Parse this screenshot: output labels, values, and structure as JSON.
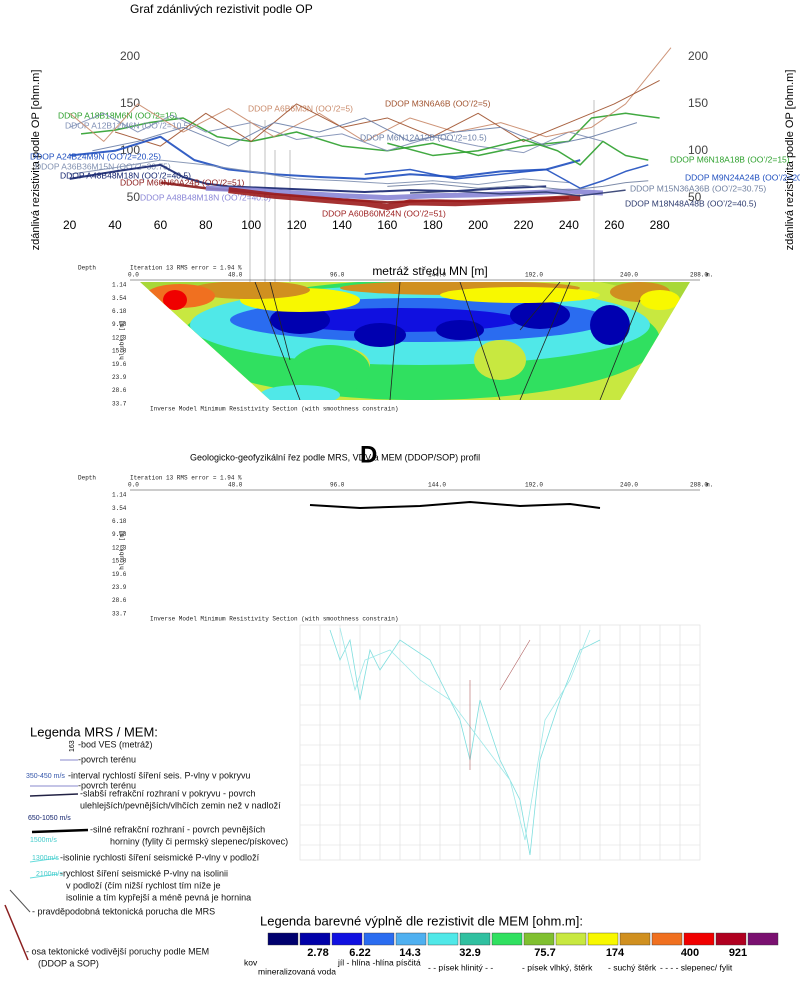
{
  "chart_data": {
    "type": "line",
    "title": "Graf zdánlivých rezistivit podle OP",
    "x_label": "metráž středu MN [m]",
    "y_label": "zdánlivá rezistivita podle OP [ohm.m]",
    "xlim": [
      10,
      300
    ],
    "ylim": [
      40,
      215
    ],
    "xticks": [
      20,
      40,
      60,
      80,
      100,
      120,
      140,
      160,
      180,
      200,
      220,
      240,
      260,
      280
    ],
    "yticks": [
      50,
      100,
      150,
      200
    ],
    "series": [
      {
        "name": "DDOP A18B18M6N (OO’/2=15)",
        "color": "#2ca02c",
        "x": [
          25,
          40,
          55,
          70,
          85,
          100,
          120,
          140,
          160,
          180,
          200,
          220,
          240,
          250,
          265,
          280
        ],
        "values": [
          118,
          122,
          130,
          135,
          115,
          110,
          120,
          105,
          100,
          108,
          95,
          105,
          110,
          135,
          140,
          135
        ]
      },
      {
        "name": "DDOP A12B12M6N (OO’/2=10.5)",
        "color": "#7f8fb5",
        "x": [
          20,
          35,
          50,
          65,
          80,
          100,
          120,
          140,
          160,
          180,
          200,
          220,
          240,
          255
        ],
        "values": [
          125,
          140,
          120,
          138,
          120,
          130,
          112,
          118,
          100,
          115,
          105,
          98,
          120,
          110
        ]
      },
      {
        "name": "DDOP A6B6M3N (OO’/2=5)",
        "color": "#c98a6a",
        "x": [
          20,
          35,
          50,
          70,
          90,
          110,
          130,
          150,
          170,
          190,
          210,
          230,
          250,
          265,
          275,
          285
        ],
        "values": [
          140,
          110,
          150,
          120,
          145,
          115,
          140,
          110,
          135,
          120,
          130,
          115,
          125,
          150,
          180,
          210
        ]
      },
      {
        "name": "DDOP M3N6A6B (OO’/2=5)",
        "color": "#a0522d",
        "x": [
          40,
          60,
          80,
          100,
          120,
          140,
          160,
          180,
          200,
          220,
          240,
          260,
          280
        ],
        "values": [
          120,
          105,
          140,
          110,
          150,
          125,
          135,
          115,
          140,
          110,
          130,
          150,
          175
        ]
      },
      {
        "name": "DDOP M6N12A12B (OO’/2=10.5)",
        "color": "#6b7fa8",
        "x": [
          30,
          50,
          70,
          90,
          110,
          130,
          150,
          170,
          190,
          210,
          230,
          250,
          270
        ],
        "values": [
          100,
          110,
          125,
          105,
          130,
          120,
          135,
          110,
          120,
          125,
          105,
          115,
          130
        ]
      },
      {
        "name": "DDOP A24B24M9N (OO’/2=20.25)",
        "color": "#1f4fbf",
        "x": [
          20,
          40,
          60,
          75,
          90,
          110,
          130,
          150,
          170,
          190,
          210,
          230,
          245
        ],
        "values": [
          95,
          100,
          115,
          90,
          80,
          75,
          72,
          70,
          75,
          72,
          78,
          80,
          90
        ]
      },
      {
        "name": "DDOP A36B36M15N (OO’/2=30.75)",
        "color": "#8090b0",
        "x": [
          20,
          40,
          60,
          80,
          100,
          120,
          140,
          160,
          180,
          200,
          220,
          240
        ],
        "values": [
          75,
          82,
          90,
          85,
          78,
          70,
          68,
          65,
          68,
          64,
          70,
          66
        ]
      },
      {
        "name": "DDOP A48B48M18N (OO’/2=40.5)",
        "color": "#14246e",
        "x": [
          20,
          40,
          60,
          70,
          80,
          90,
          110,
          130,
          150,
          170,
          190,
          210,
          230
        ],
        "values": [
          70,
          78,
          85,
          72,
          65,
          62,
          60,
          58,
          56,
          58,
          57,
          60,
          62
        ]
      },
      {
        "name": "DDOP M60N60A24B (OO’/2=51)",
        "color": "#8b1a1a",
        "x": [
          60,
          80,
          100,
          120,
          140,
          160,
          180,
          200,
          220,
          240
        ],
        "values": [
          66,
          60,
          56,
          52,
          48,
          45,
          47,
          46,
          48,
          50
        ]
      },
      {
        "name": "DDOP A48B48M18N (OO’/2=40.5)",
        "color": "#8a86d6",
        "x": [
          80,
          100,
          120,
          140,
          160,
          180,
          200,
          220,
          240,
          255
        ],
        "values": [
          60,
          58,
          55,
          52,
          50,
          52,
          53,
          55,
          57,
          55
        ]
      },
      {
        "name": "DDOP A60B60M24N (OO’/2=51)",
        "color": "#9b1c1c",
        "x": [
          90,
          110,
          130,
          150,
          160,
          170,
          190,
          210,
          230,
          245
        ],
        "values": [
          58,
          52,
          48,
          44,
          40,
          45,
          44,
          46,
          48,
          50
        ]
      },
      {
        "name": "DDOP M6N18A18B (OO’/2=15)",
        "color": "#2ca02c",
        "x": [
          160,
          180,
          200,
          220,
          235,
          245,
          255,
          265,
          275
        ],
        "values": [
          108,
          95,
          100,
          112,
          100,
          85,
          110,
          95,
          90
        ]
      },
      {
        "name": "DDOP M9N24A24B (OO’/2=20.25)",
        "color": "#1f4fbf",
        "x": [
          150,
          170,
          190,
          210,
          230,
          245,
          255,
          265,
          275
        ],
        "values": [
          75,
          80,
          70,
          75,
          80,
          60,
          68,
          78,
          85
        ]
      },
      {
        "name": "DDOP M15N36A36B (OO’/2=30.75)",
        "color": "#7080a0",
        "x": [
          160,
          180,
          200,
          220,
          240,
          255,
          265,
          275
        ],
        "values": [
          62,
          65,
          60,
          63,
          58,
          62,
          66,
          68
        ]
      },
      {
        "name": "DDOP M18N48A48B (OO’/2=40.5)",
        "color": "#2c3a6e",
        "x": [
          170,
          190,
          210,
          230,
          245,
          255,
          265
        ],
        "values": [
          55,
          57,
          54,
          56,
          52,
          55,
          58
        ]
      }
    ]
  },
  "sections": [
    {
      "depth": "Depth",
      "iteration": "Iteration 13 RMS error = 1.94 %",
      "x_labels": [
        "0.0",
        "48.0",
        "96.0",
        "144.0",
        "192.0",
        "240.0",
        "288.0"
      ],
      "unit": "m.",
      "depth_labels": [
        "1.14",
        "3.54",
        "6.18",
        "9.08",
        "12.3",
        "15.8",
        "19.6",
        "23.9",
        "28.6",
        "33.7"
      ],
      "depth_axis": "hloubka [m]",
      "caption": "Inverse Model Minimum Resistivity Section (with smoothness constrain)"
    },
    {
      "depth": "Depth",
      "iteration": "Iteration 13 RMS error = 1.94 %",
      "x_labels": [
        "0.0",
        "48.0",
        "96.0",
        "144.0",
        "192.0",
        "240.0",
        "288.0"
      ],
      "unit": "m.",
      "depth_labels": [
        "1.14",
        "3.54",
        "6.18",
        "9.08",
        "12.3",
        "15.8",
        "19.6",
        "23.9",
        "28.6",
        "33.7"
      ],
      "depth_axis": "hloubka [m]",
      "caption": "Inverse Model Minimum Resistivity Section (with smoothness constrain)"
    }
  ],
  "profile_title": "Geologicko-geofyzikální řez podle MRS, VDV a MEM (DDOP/SOP) profil",
  "profile_letter": "D",
  "legend_mrs": {
    "title": "Legenda MRS / MEM:",
    "ves": "163",
    "lines": [
      "-bod VES (metráž)",
      "-povrch terénu",
      "350-450 m/s",
      "-interval rychlostí šíření seis. P-vlny v pokryvu",
      "-povrch terénu",
      "-slabší refrakční rozhraní v pokryvu - povrch",
      "ulehlejších/pevnějších/vlhčích zemin než v nadloží",
      "650-1050 m/s",
      "-silné refrakční rozhraní - povrch pevnějších",
      "1500m/s",
      "horniny (fylity či permský slepenec/pískovec)",
      "1300m/s",
      "-isolinie rychlosti šíření seismické P-vlny v podloží",
      "2100m/s",
      "-rychlost šíření seismické P-vlny na isolinii",
      "v podloží (čím nižší rychlost tím níže je",
      "isolinie a tím kypřejší a méně pevná je hornina",
      "- pravděpodobná tektonická porucha dle MRS",
      "- osa tektonické vodivější poruchy podle MEM",
      "(DDOP a SOP)"
    ]
  },
  "legend_colors": {
    "title": "Legenda barevné výplně dle rezistivit dle MEM [ohm.m]:",
    "values": [
      "2.78",
      "6.22",
      "14.3",
      "32.9",
      "75.7",
      "174",
      "400",
      "921"
    ],
    "descriptions": [
      "kov",
      "mineralizovaná voda",
      "jíl - hlína -hlína písčitá",
      "- - písek hlinitý - -",
      "- písek vlhký, štěrk",
      "- suchý štěrk",
      "- - - - slepenec/ fylit"
    ]
  }
}
